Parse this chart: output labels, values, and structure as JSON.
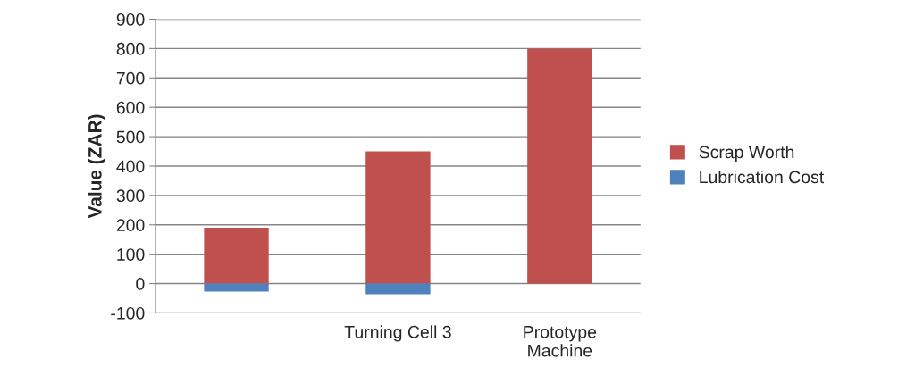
{
  "chart_data": {
    "type": "bar",
    "stacked": true,
    "ylabel": "Value (ZAR)",
    "categories": [
      null,
      "Turning Cell 3",
      "Prototype\nMachine"
    ],
    "series": [
      {
        "name": "Scrap Worth",
        "color": "#c0504d",
        "values": [
          190,
          450,
          800
        ]
      },
      {
        "name": "Lubrication Cost",
        "color": "#4f81bd",
        "values": [
          -27,
          -36,
          null
        ]
      }
    ],
    "ylim": [
      -100,
      900
    ],
    "yticks": [
      -100,
      0,
      100,
      200,
      300,
      400,
      500,
      600,
      700,
      800,
      900
    ],
    "grid": "y",
    "legend": "right"
  }
}
